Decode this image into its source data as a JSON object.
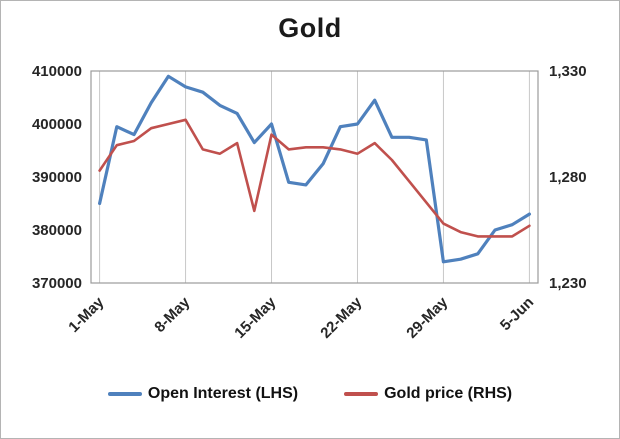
{
  "chart_data": {
    "type": "line",
    "title": "Gold",
    "grid": "vertical",
    "legend_position": "bottom",
    "x_tick_labels": [
      "1-May",
      "8-May",
      "15-May",
      "22-May",
      "29-May",
      "5-Jun"
    ],
    "x_tick_positions": [
      0,
      5,
      10,
      15,
      20,
      25
    ],
    "left_axis": {
      "min": 370000,
      "max": 410000,
      "ticks": [
        370000,
        380000,
        390000,
        400000,
        410000
      ],
      "tick_labels": [
        "370000",
        "380000",
        "390000",
        "400000",
        "410000"
      ]
    },
    "right_axis": {
      "min": 1230,
      "max": 1330,
      "ticks": [
        1230,
        1280,
        1330
      ],
      "tick_labels": [
        "1,230",
        "1,280",
        "1,330"
      ]
    },
    "series": [
      {
        "name": "Open Interest (LHS)",
        "axis": "left",
        "color": "#4F81BD",
        "values": [
          385000,
          399500,
          398000,
          404000,
          409000,
          407000,
          406000,
          403500,
          402000,
          396500,
          400000,
          389000,
          388500,
          392500,
          399500,
          400000,
          404500,
          397500,
          397500,
          397000,
          374000,
          374500,
          375500,
          380000,
          381000,
          383000
        ]
      },
      {
        "name": "Gold price (RHS)",
        "axis": "right",
        "color": "#C0504D",
        "values": [
          1283,
          1295,
          1297,
          1303,
          1305,
          1307,
          1293,
          1291,
          1296,
          1264,
          1300,
          1293,
          1294,
          1294,
          1293,
          1291,
          1296,
          1288,
          1278,
          1268,
          1258,
          1254,
          1252,
          1252,
          1252,
          1257
        ]
      }
    ]
  }
}
